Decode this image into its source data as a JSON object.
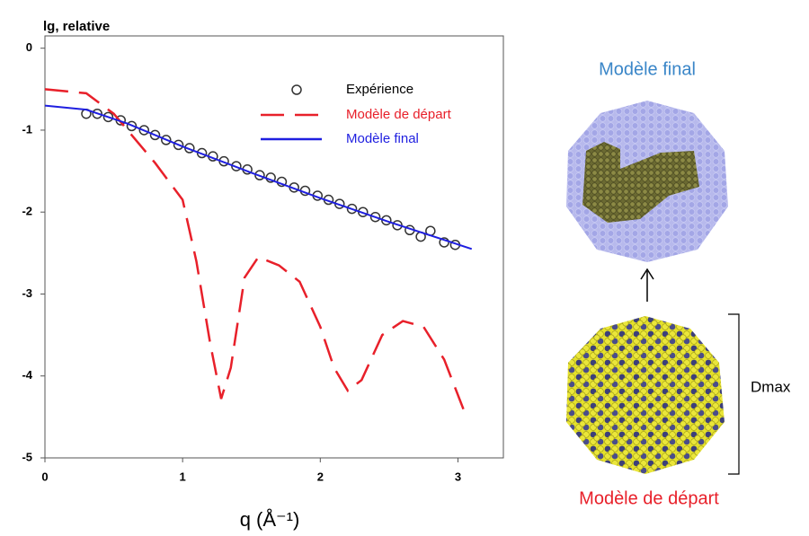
{
  "chart_data": {
    "type": "line",
    "y_label": "lg, relative",
    "x_label": "q (Å⁻¹)",
    "xlim": [
      0,
      3.33
    ],
    "ylim": [
      -5,
      0.15
    ],
    "xticks": [
      0,
      1,
      2,
      3
    ],
    "yticks": [
      0,
      -1,
      -2,
      -3,
      -4,
      -5
    ],
    "series": [
      {
        "name": "Expérience",
        "color": "#333333",
        "style": "markers",
        "x": [
          0.3,
          0.38,
          0.46,
          0.55,
          0.63,
          0.72,
          0.8,
          0.88,
          0.97,
          1.05,
          1.14,
          1.22,
          1.3,
          1.39,
          1.47,
          1.56,
          1.64,
          1.72,
          1.81,
          1.89,
          1.98,
          2.06,
          2.14,
          2.23,
          2.31,
          2.4,
          2.48,
          2.56,
          2.65,
          2.73,
          2.8,
          2.9,
          2.98
        ],
        "values": [
          -0.8,
          -0.8,
          -0.84,
          -0.88,
          -0.95,
          -1.0,
          -1.06,
          -1.12,
          -1.18,
          -1.22,
          -1.28,
          -1.32,
          -1.38,
          -1.44,
          -1.48,
          -1.55,
          -1.58,
          -1.63,
          -1.7,
          -1.74,
          -1.8,
          -1.85,
          -1.9,
          -1.96,
          -2.0,
          -2.06,
          -2.1,
          -2.16,
          -2.22,
          -2.3,
          -2.23,
          -2.37,
          -2.4
        ]
      },
      {
        "name": "Modèle de départ",
        "color": "#e8202a",
        "style": "dashed",
        "x": [
          0,
          0.3,
          0.5,
          0.8,
          1.0,
          1.1,
          1.2,
          1.28,
          1.35,
          1.45,
          1.55,
          1.7,
          1.85,
          2.0,
          2.1,
          2.2,
          2.3,
          2.45,
          2.6,
          2.75,
          2.9,
          3.05
        ],
        "values": [
          -0.5,
          -0.55,
          -0.8,
          -1.4,
          -1.85,
          -2.6,
          -3.6,
          -4.28,
          -3.9,
          -2.8,
          -2.55,
          -2.65,
          -2.85,
          -3.4,
          -3.9,
          -4.18,
          -4.05,
          -3.5,
          -3.33,
          -3.4,
          -3.8,
          -4.45
        ]
      },
      {
        "name": "Modèle final",
        "color": "#1f1fe0",
        "style": "solid",
        "x": [
          0,
          0.3,
          0.6,
          1,
          1.5,
          2,
          2.5,
          3.1
        ],
        "values": [
          -0.7,
          -0.75,
          -0.92,
          -1.2,
          -1.52,
          -1.83,
          -2.12,
          -2.45
        ]
      }
    ]
  },
  "illustration": {
    "top_label": "Modèle final",
    "bottom_label": "Modèle de départ",
    "dimension_label": "Dmax"
  }
}
